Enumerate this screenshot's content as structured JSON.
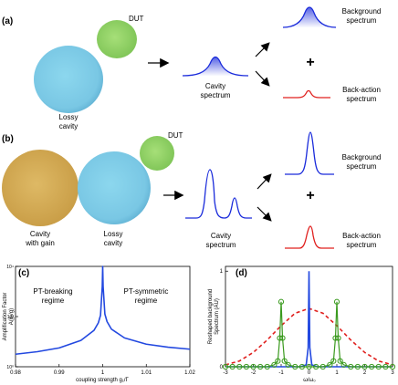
{
  "panels": {
    "a": {
      "label": "(a)",
      "dut": "DUT",
      "cavity_line1": "Lossy",
      "cavity_line2": "cavity",
      "spectrum_line1": "Cavity",
      "spectrum_line2": "spectrum",
      "bg_line1": "Background",
      "bg_line2": "spectrum",
      "plus": "+",
      "ba_line1": "Back-action",
      "ba_line2": "spectrum"
    },
    "b": {
      "label": "(b)",
      "dut": "DUT",
      "gain_line1": "Cavity",
      "gain_line2": "with gain",
      "lossy_line1": "Lossy",
      "lossy_line2": "cavity",
      "spectrum_line1": "Cavity",
      "spectrum_line2": "spectrum",
      "bg_line1": "Background",
      "bg_line2": "spectrum",
      "plus": "+",
      "ba_line1": "Back-action",
      "ba_line2": "spectrum"
    }
  },
  "colors": {
    "lossy_cavity": "#7ecfe8",
    "dut": "#9bd86a",
    "gain_cavity": "#d7b25e",
    "spectrum_blue": "#1a2bdb",
    "backaction_red": "#e0201e",
    "plot_blue": "#2248e0",
    "plot_green": "#3a9a1e",
    "plot_red_dash": "#e0201e"
  },
  "chart_data": [
    {
      "panel": "(c)",
      "type": "line",
      "ylabel_line1": "Amplification Factor",
      "ylabel_line2": "A(g₁/g)",
      "xlabel": "coupling strength g₁/Γ",
      "x_ticks": [
        "0.98",
        "0.99",
        "1",
        "1.01",
        "1.02"
      ],
      "xlim": [
        0.98,
        1.02
      ],
      "y_ticks": [
        "10⁰",
        "10²",
        "10⁴"
      ],
      "y_scale": "log",
      "ylim_log10": [
        0,
        4
      ],
      "annotations": {
        "left_line1": "PT-breaking",
        "left_line2": "regime",
        "right_line1": "PT-symmetric",
        "right_line2": "regime"
      },
      "series": [
        {
          "color": "#2248e0",
          "x": [
            0.98,
            0.985,
            0.99,
            0.995,
            0.998,
            0.999,
            0.9995,
            0.9999,
            1.0,
            1.0001,
            1.0005,
            1.001,
            1.002,
            1.005,
            1.01,
            1.015,
            1.02
          ],
          "log10_y": [
            0.5,
            0.6,
            0.75,
            1.05,
            1.45,
            1.75,
            2.05,
            3.2,
            4.0,
            3.2,
            2.1,
            1.8,
            1.5,
            1.15,
            0.9,
            0.78,
            0.7
          ]
        }
      ]
    },
    {
      "panel": "(d)",
      "type": "line",
      "ylabel_line1": "Reshaped background",
      "ylabel_line2": "Spectrum (AU)",
      "xlabel": "ω/ω₀",
      "x_ticks": [
        "-3",
        "-2",
        "-1",
        "0",
        "1",
        "2",
        "3"
      ],
      "xlim": [
        -3,
        3
      ],
      "y_ticks": [
        "0",
        "1"
      ],
      "ylim": [
        0,
        1.05
      ],
      "series": [
        {
          "style": "dashed",
          "color": "#e0201e",
          "x": [
            -3,
            -2.5,
            -2,
            -1.5,
            -1,
            -0.5,
            0,
            0.5,
            1,
            1.5,
            2,
            2.5,
            3
          ],
          "y": [
            0.02,
            0.06,
            0.15,
            0.28,
            0.43,
            0.56,
            0.61,
            0.56,
            0.43,
            0.28,
            0.15,
            0.06,
            0.02
          ]
        },
        {
          "style": "solid",
          "color": "#2248e0",
          "x": [
            -3,
            -0.3,
            -0.1,
            -0.03,
            0,
            0.03,
            0.1,
            0.3,
            3
          ],
          "y": [
            0,
            0,
            0.02,
            0.2,
            1.0,
            0.2,
            0.02,
            0,
            0
          ]
        },
        {
          "style": "markers",
          "color": "#3a9a1e",
          "x": [
            -3,
            -2.75,
            -2.5,
            -2.25,
            -2,
            -1.75,
            -1.5,
            -1.25,
            -1.12,
            -1.05,
            -1,
            -0.95,
            -0.88,
            -0.75,
            -0.5,
            -0.25,
            0,
            0.25,
            0.5,
            0.75,
            0.88,
            0.95,
            1,
            1.05,
            1.12,
            1.25,
            1.5,
            1.75,
            2,
            2.25,
            2.5,
            2.75,
            3
          ],
          "y": [
            0,
            0,
            0,
            0,
            0,
            0,
            0,
            0.02,
            0.06,
            0.3,
            0.68,
            0.3,
            0.06,
            0.02,
            0,
            0,
            0,
            0,
            0,
            0.02,
            0.06,
            0.3,
            0.68,
            0.3,
            0.06,
            0.02,
            0,
            0,
            0,
            0,
            0,
            0,
            0
          ]
        }
      ]
    }
  ]
}
